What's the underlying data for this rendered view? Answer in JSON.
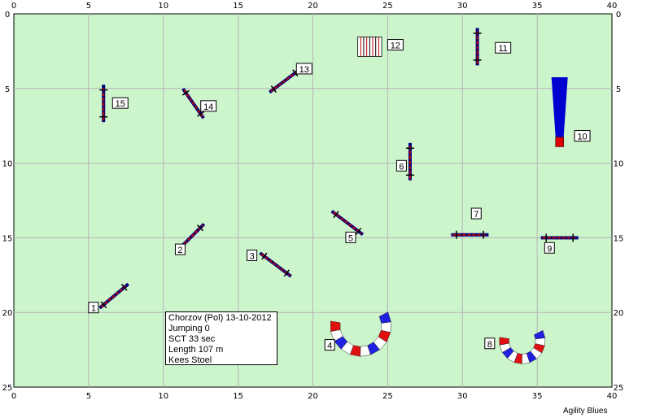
{
  "course": {
    "field_color": "#ccf5cc",
    "grid_color": "#b4b4b4",
    "x_ticks": [
      "0",
      "5",
      "10",
      "15",
      "20",
      "25",
      "30",
      "35",
      "40"
    ],
    "y_ticks": [
      "0",
      "5",
      "10",
      "15",
      "20",
      "25"
    ],
    "x_range": [
      0,
      40
    ],
    "y_range": [
      0,
      25
    ]
  },
  "obstacles": [
    {
      "number": "1",
      "kind": "jump",
      "x": 6.7,
      "y": 18.9,
      "angle": 40,
      "len": 2.5
    },
    {
      "number": "2",
      "kind": "jump",
      "x": 11.8,
      "y": 15.0,
      "angle": 45,
      "len": 2.6
    },
    {
      "number": "3",
      "kind": "jump",
      "x": 17.5,
      "y": 16.8,
      "angle": -37,
      "len": 2.6
    },
    {
      "number": "4",
      "kind": "tunnel",
      "x": 23.2,
      "y": 20.9,
      "angle": 0,
      "len": 3.0
    },
    {
      "number": "5",
      "kind": "jump",
      "x": 22.3,
      "y": 14.0,
      "angle": -37,
      "len": 2.6
    },
    {
      "number": "6",
      "kind": "jump",
      "x": 26.5,
      "y": 9.9,
      "angle": 90,
      "len": 2.5
    },
    {
      "number": "7",
      "kind": "jump",
      "x": 30.5,
      "y": 14.8,
      "angle": 0,
      "len": 2.5
    },
    {
      "number": "8",
      "kind": "tunnel",
      "x": 34.0,
      "y": 21.9,
      "angle": 0,
      "len": 2.0
    },
    {
      "number": "9",
      "kind": "jump",
      "x": 36.5,
      "y": 15.0,
      "angle": 0,
      "len": 2.5
    },
    {
      "number": "10",
      "kind": "weave_entry",
      "x": 36.5,
      "y": 6.5,
      "angle": 0,
      "len": 3.5
    },
    {
      "number": "11",
      "kind": "jump",
      "x": 31.0,
      "y": 2.2,
      "angle": 90,
      "len": 2.5
    },
    {
      "number": "12",
      "kind": "wall",
      "x": 23.8,
      "y": 2.2,
      "angle": 0,
      "len": 1.6
    },
    {
      "number": "13",
      "kind": "jump",
      "x": 18.1,
      "y": 4.5,
      "angle": 37,
      "len": 2.5
    },
    {
      "number": "14",
      "kind": "jump",
      "x": 12.0,
      "y": 6.0,
      "angle": -55,
      "len": 2.4
    },
    {
      "number": "15",
      "kind": "jump",
      "x": 6.0,
      "y": 6.0,
      "angle": 90,
      "len": 2.5
    }
  ],
  "labels": [
    {
      "text": "1",
      "x": 5.0,
      "y": 19.7
    },
    {
      "text": "2",
      "x": 10.8,
      "y": 15.8
    },
    {
      "text": "3",
      "x": 15.6,
      "y": 16.2
    },
    {
      "text": "4",
      "x": 20.8,
      "y": 22.2
    },
    {
      "text": "5",
      "x": 22.2,
      "y": 15.0
    },
    {
      "text": "6",
      "x": 25.6,
      "y": 10.2
    },
    {
      "text": "7",
      "x": 30.6,
      "y": 13.4
    },
    {
      "text": "8",
      "x": 31.5,
      "y": 22.1
    },
    {
      "text": "9",
      "x": 35.5,
      "y": 15.7
    },
    {
      "text": "10",
      "x": 37.5,
      "y": 8.2
    },
    {
      "text": "11",
      "x": 32.2,
      "y": 2.3
    },
    {
      "text": "12",
      "x": 25.0,
      "y": 2.1
    },
    {
      "text": "13",
      "x": 18.9,
      "y": 3.7
    },
    {
      "text": "14",
      "x": 12.5,
      "y": 6.2
    },
    {
      "text": "15",
      "x": 6.6,
      "y": 6.0
    }
  ],
  "info": {
    "event": "Chorzov (Pol) 13-10-2012",
    "run": "Jumping 0",
    "sct": "SCT 33 sec",
    "length": "Length 107 m",
    "judge": "Kees Stoel"
  },
  "credit": "Agility Blues",
  "colors": {
    "bar": "#c00000",
    "wing": "#00007a",
    "tunnel_a": "#2020e0",
    "tunnel_b": "#ffffff",
    "tunnel_c": "#e01010",
    "weave": "#0000d0",
    "weave_end": "#e00000"
  }
}
